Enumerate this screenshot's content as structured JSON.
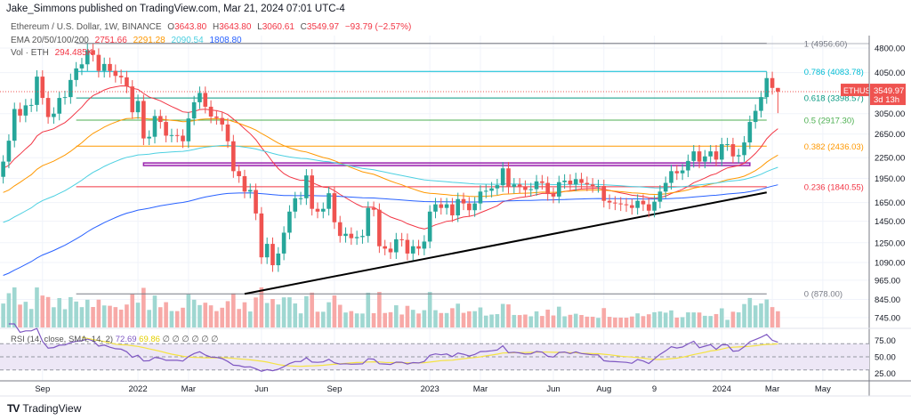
{
  "publisher_line": "Jake_Simmons published on TradingView.com, Mar 21, 2024 07:01 UTC-4",
  "legend": {
    "symbol": "Ethereum / U.S. Dollar, 1W, BINANCE",
    "o_label": "O",
    "o": "3643.80",
    "h_label": "H",
    "h": "3643.80",
    "l_label": "L",
    "l": "3060.61",
    "c_label": "C",
    "c": "3549.97",
    "change": "−93.79 (−2.57%)",
    "ema_label": "EMA 20/50/100/200",
    "ema_values": [
      "2751.66",
      "2291.28",
      "2090.54",
      "1808.80"
    ],
    "vol_label": "Vol · ETH",
    "vol_value": "294.485K"
  },
  "footer": {
    "logo": "TV",
    "brand": "TradingView"
  },
  "colors": {
    "up": "#26a69a",
    "down": "#ef5350",
    "ema": [
      "#f23645",
      "#ff9800",
      "#4dd0e1",
      "#2962ff"
    ],
    "rsi": "#7e57c2",
    "rsi_ma": "#f5e342",
    "rsi_band": "#ede7f6",
    "rectangle": "#9c27b0",
    "trendline": "#000000"
  },
  "chart_data": {
    "type": "candlestick",
    "symbol": "ETHUSD",
    "interval": "1W",
    "x_start": "2021-07-19",
    "close": [
      2190,
      2530,
      3150,
      3010,
      3230,
      3240,
      3940,
      3400,
      2980,
      3050,
      3400,
      3420,
      3850,
      4170,
      4290,
      4730,
      4580,
      4100,
      4300,
      4100,
      3960,
      3920,
      3680,
      3080,
      3330,
      2570,
      2600,
      3000,
      2880,
      2620,
      2630,
      2620,
      2520,
      2950,
      3300,
      3520,
      3200,
      2990,
      2960,
      2830,
      2520,
      2050,
      1980,
      1780,
      1800,
      1530,
      1130,
      1240,
      1070,
      1160,
      1340,
      1550,
      1700,
      1700,
      1990,
      1580,
      1550,
      1580,
      1760,
      1440,
      1310,
      1330,
      1290,
      1300,
      1310,
      1590,
      1570,
      1220,
      1200,
      1170,
      1280,
      1275,
      1160,
      1220,
      1200,
      1260,
      1550,
      1630,
      1590,
      1630,
      1510,
      1690,
      1640,
      1565,
      1640,
      1780,
      1790,
      1820,
      1860,
      2090,
      1840,
      1870,
      1840,
      1800,
      1810,
      1910,
      1890,
      1750,
      1720,
      1900,
      1920,
      1870,
      1940,
      1890,
      1870,
      1850,
      1850,
      1670,
      1650,
      1640,
      1630,
      1620,
      1590,
      1670,
      1630,
      1560,
      1660,
      1780,
      1890,
      2050,
      2020,
      2060,
      2200,
      2350,
      2190,
      2270,
      2350,
      2220,
      2470,
      2470,
      2270,
      2290,
      2500,
      2880,
      3110,
      3420,
      3900,
      3643.8,
      3549.97
    ],
    "last_candle": {
      "open": 3643.8,
      "high": 3643.8,
      "low": 3060.61,
      "close": 3549.97
    },
    "y_scale": "log",
    "y_ticks": [
      "4800.00",
      "4050.00",
      "3050.00",
      "2650.00",
      "2250.00",
      "1950.00",
      "1650.00",
      "1450.00",
      "1250.00",
      "1090.00",
      "965.00",
      "845.00",
      "745.00"
    ],
    "x_ticks": [
      {
        "label": "Sep",
        "date": "2021-09-06"
      },
      {
        "label": "2022",
        "date": "2022-01-03"
      },
      {
        "label": "Mar",
        "date": "2022-03-07"
      },
      {
        "label": "Jun",
        "date": "2022-06-06"
      },
      {
        "label": "Sep",
        "date": "2022-09-05"
      },
      {
        "label": "2023",
        "date": "2023-01-02"
      },
      {
        "label": "Mar",
        "date": "2023-03-06"
      },
      {
        "label": "Jun",
        "date": "2023-06-05"
      },
      {
        "label": "Aug",
        "date": "2023-08-07"
      },
      {
        "label": "9",
        "date": "2023-10-09"
      },
      {
        "label": "2024",
        "date": "2024-01-01"
      },
      {
        "label": "Mar",
        "date": "2024-03-04"
      },
      {
        "label": "May",
        "date": "2024-05-06"
      }
    ],
    "price_tag": {
      "symbol": "ETHUSD",
      "price": "3549.97",
      "countdown": "3d 13h"
    },
    "fib": {
      "from": "2021-10-18",
      "to": "2024-02-26",
      "levels": [
        {
          "label": "1 (4956.60)",
          "price": 4956.6,
          "color": "#787b86"
        },
        {
          "label": "0.786 (4083.78)",
          "price": 4083.78,
          "color": "#00bcd4"
        },
        {
          "label": "0.618 (3398.57)",
          "price": 3398.57,
          "color": "#089981"
        },
        {
          "label": "0.5 (2917.30)",
          "price": 2917.3,
          "color": "#4caf50"
        },
        {
          "label": "0.382 (2436.03)",
          "price": 2436.03,
          "color": "#ff9800"
        },
        {
          "label": "0.236 (1840.55)",
          "price": 1840.55,
          "color": "#f23645"
        },
        {
          "label": "0 (878.00)",
          "price": 878.0,
          "color": "#787b86"
        }
      ]
    },
    "rectangle": {
      "from": "2022-01-10",
      "to": "2024-02-05",
      "low": 2130,
      "high": 2170
    },
    "trendline": {
      "from": [
        "2022-05-16",
        878
      ],
      "to": [
        "2024-02-26",
        1770
      ]
    },
    "ema_periods": [
      20,
      50,
      100,
      200
    ],
    "rsi": {
      "label": "RSI (14, close, SMA, 14, 2)",
      "value": "72.69",
      "ma_value": "69.86",
      "extra": "∅ ∅ ∅ ∅ ∅ ∅",
      "ticks": [
        "75.00",
        "50.00",
        "25.00"
      ],
      "bands": [
        70,
        50,
        30
      ]
    }
  }
}
